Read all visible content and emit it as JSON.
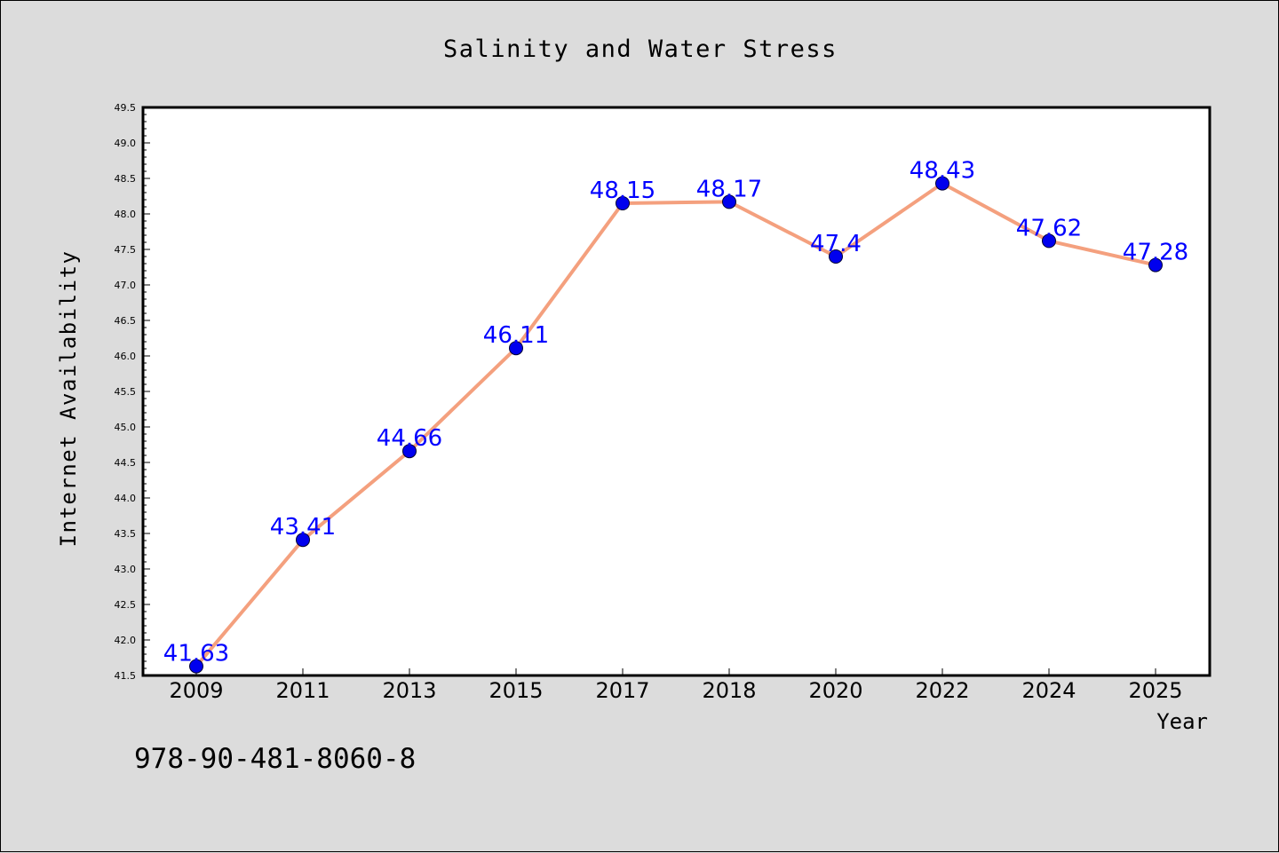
{
  "chart_data": {
    "type": "line",
    "title": "Salinity and Water Stress",
    "xlabel": "Year",
    "ylabel": "Internet Availability",
    "categories": [
      "2009",
      "2011",
      "2013",
      "2015",
      "2017",
      "2018",
      "2020",
      "2022",
      "2024",
      "2025"
    ],
    "series": [
      {
        "values": [
          41.63,
          43.41,
          44.66,
          46.11,
          48.15,
          48.17,
          47.4,
          48.43,
          47.62,
          47.28
        ],
        "data_labels": [
          "41.63",
          "43.41",
          "44.66",
          "46.11",
          "48.15",
          "48.17",
          "47.4",
          "48.43",
          "47.62",
          "47.28"
        ]
      }
    ],
    "ylim": [
      41.5,
      49.5
    ],
    "yticks": [
      "41.5",
      "42.0",
      "42.5",
      "43.0",
      "43.5",
      "44.0",
      "44.5",
      "45.0",
      "45.5",
      "46.0",
      "46.5",
      "47.0",
      "47.5",
      "48.0",
      "48.5",
      "49.0",
      "49.5"
    ],
    "grid": false,
    "colors": {
      "line": "#f4a07e",
      "marker": "#0000ee",
      "label": "#0000ff",
      "background": "#dcdcdc",
      "plot_background": "#ffffff"
    }
  },
  "annotation": {
    "text": "978-90-481-8060-8"
  }
}
